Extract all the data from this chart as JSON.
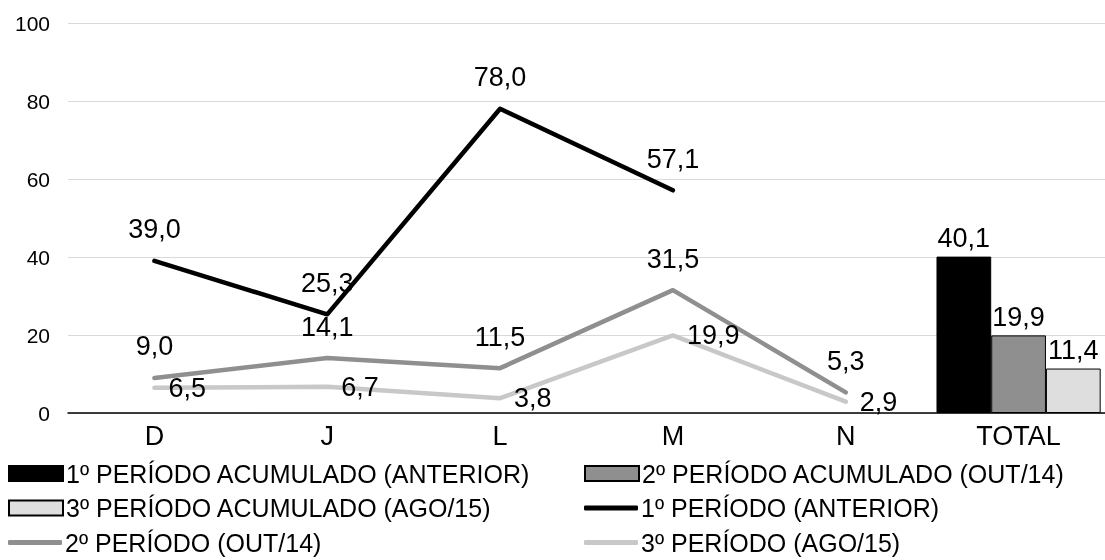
{
  "chart_data": {
    "type": "line",
    "categories": [
      "D",
      "J",
      "L",
      "M",
      "N",
      "TOTAL"
    ],
    "ylim": [
      0,
      100
    ],
    "yticks": [
      0,
      20,
      40,
      60,
      80,
      100
    ],
    "grid": "y",
    "legend": "bottom",
    "series": [
      {
        "name": "1º PERÍODO ACUMULADO (ANTERIOR)",
        "type": "bar",
        "color": "#000000",
        "values": [
          null,
          null,
          null,
          null,
          null,
          40.1
        ],
        "value_labels": [
          null,
          null,
          null,
          null,
          null,
          "40,1"
        ]
      },
      {
        "name": "2º PERÍODO ACUMULADO (OUT/14)",
        "type": "bar",
        "color": "#8f8f8f",
        "values": [
          null,
          null,
          null,
          null,
          null,
          19.9
        ],
        "value_labels": [
          null,
          null,
          null,
          null,
          null,
          "19,9"
        ]
      },
      {
        "name": "3º PERÍODO ACUMULADO (AGO/15)",
        "type": "bar",
        "color": "#dedede",
        "values": [
          null,
          null,
          null,
          null,
          null,
          11.4
        ],
        "value_labels": [
          null,
          null,
          null,
          null,
          null,
          "11,4"
        ]
      },
      {
        "name": "1º PERÍODO (ANTERIOR)",
        "color": "#000000",
        "values": [
          39.0,
          25.3,
          78.0,
          57.1,
          null,
          null
        ],
        "value_labels": [
          "39,0",
          "25,3",
          "78,0",
          "57,1",
          null,
          null
        ]
      },
      {
        "name": "2º PERÍODO (OUT/14)",
        "color": "#8f8f8f",
        "values": [
          9.0,
          14.1,
          11.5,
          31.5,
          5.3,
          null
        ],
        "value_labels": [
          "9,0",
          "14,1",
          "11,5",
          "31,5",
          "5,3",
          null
        ]
      },
      {
        "name": "3º PERÍODO (AGO/15)",
        "color": "#c8c8c8",
        "values": [
          6.5,
          6.7,
          3.8,
          19.9,
          2.9,
          null
        ],
        "value_labels": [
          "6,5",
          "6,7",
          "3,8",
          "19,9",
          "2,9",
          null
        ]
      }
    ]
  }
}
